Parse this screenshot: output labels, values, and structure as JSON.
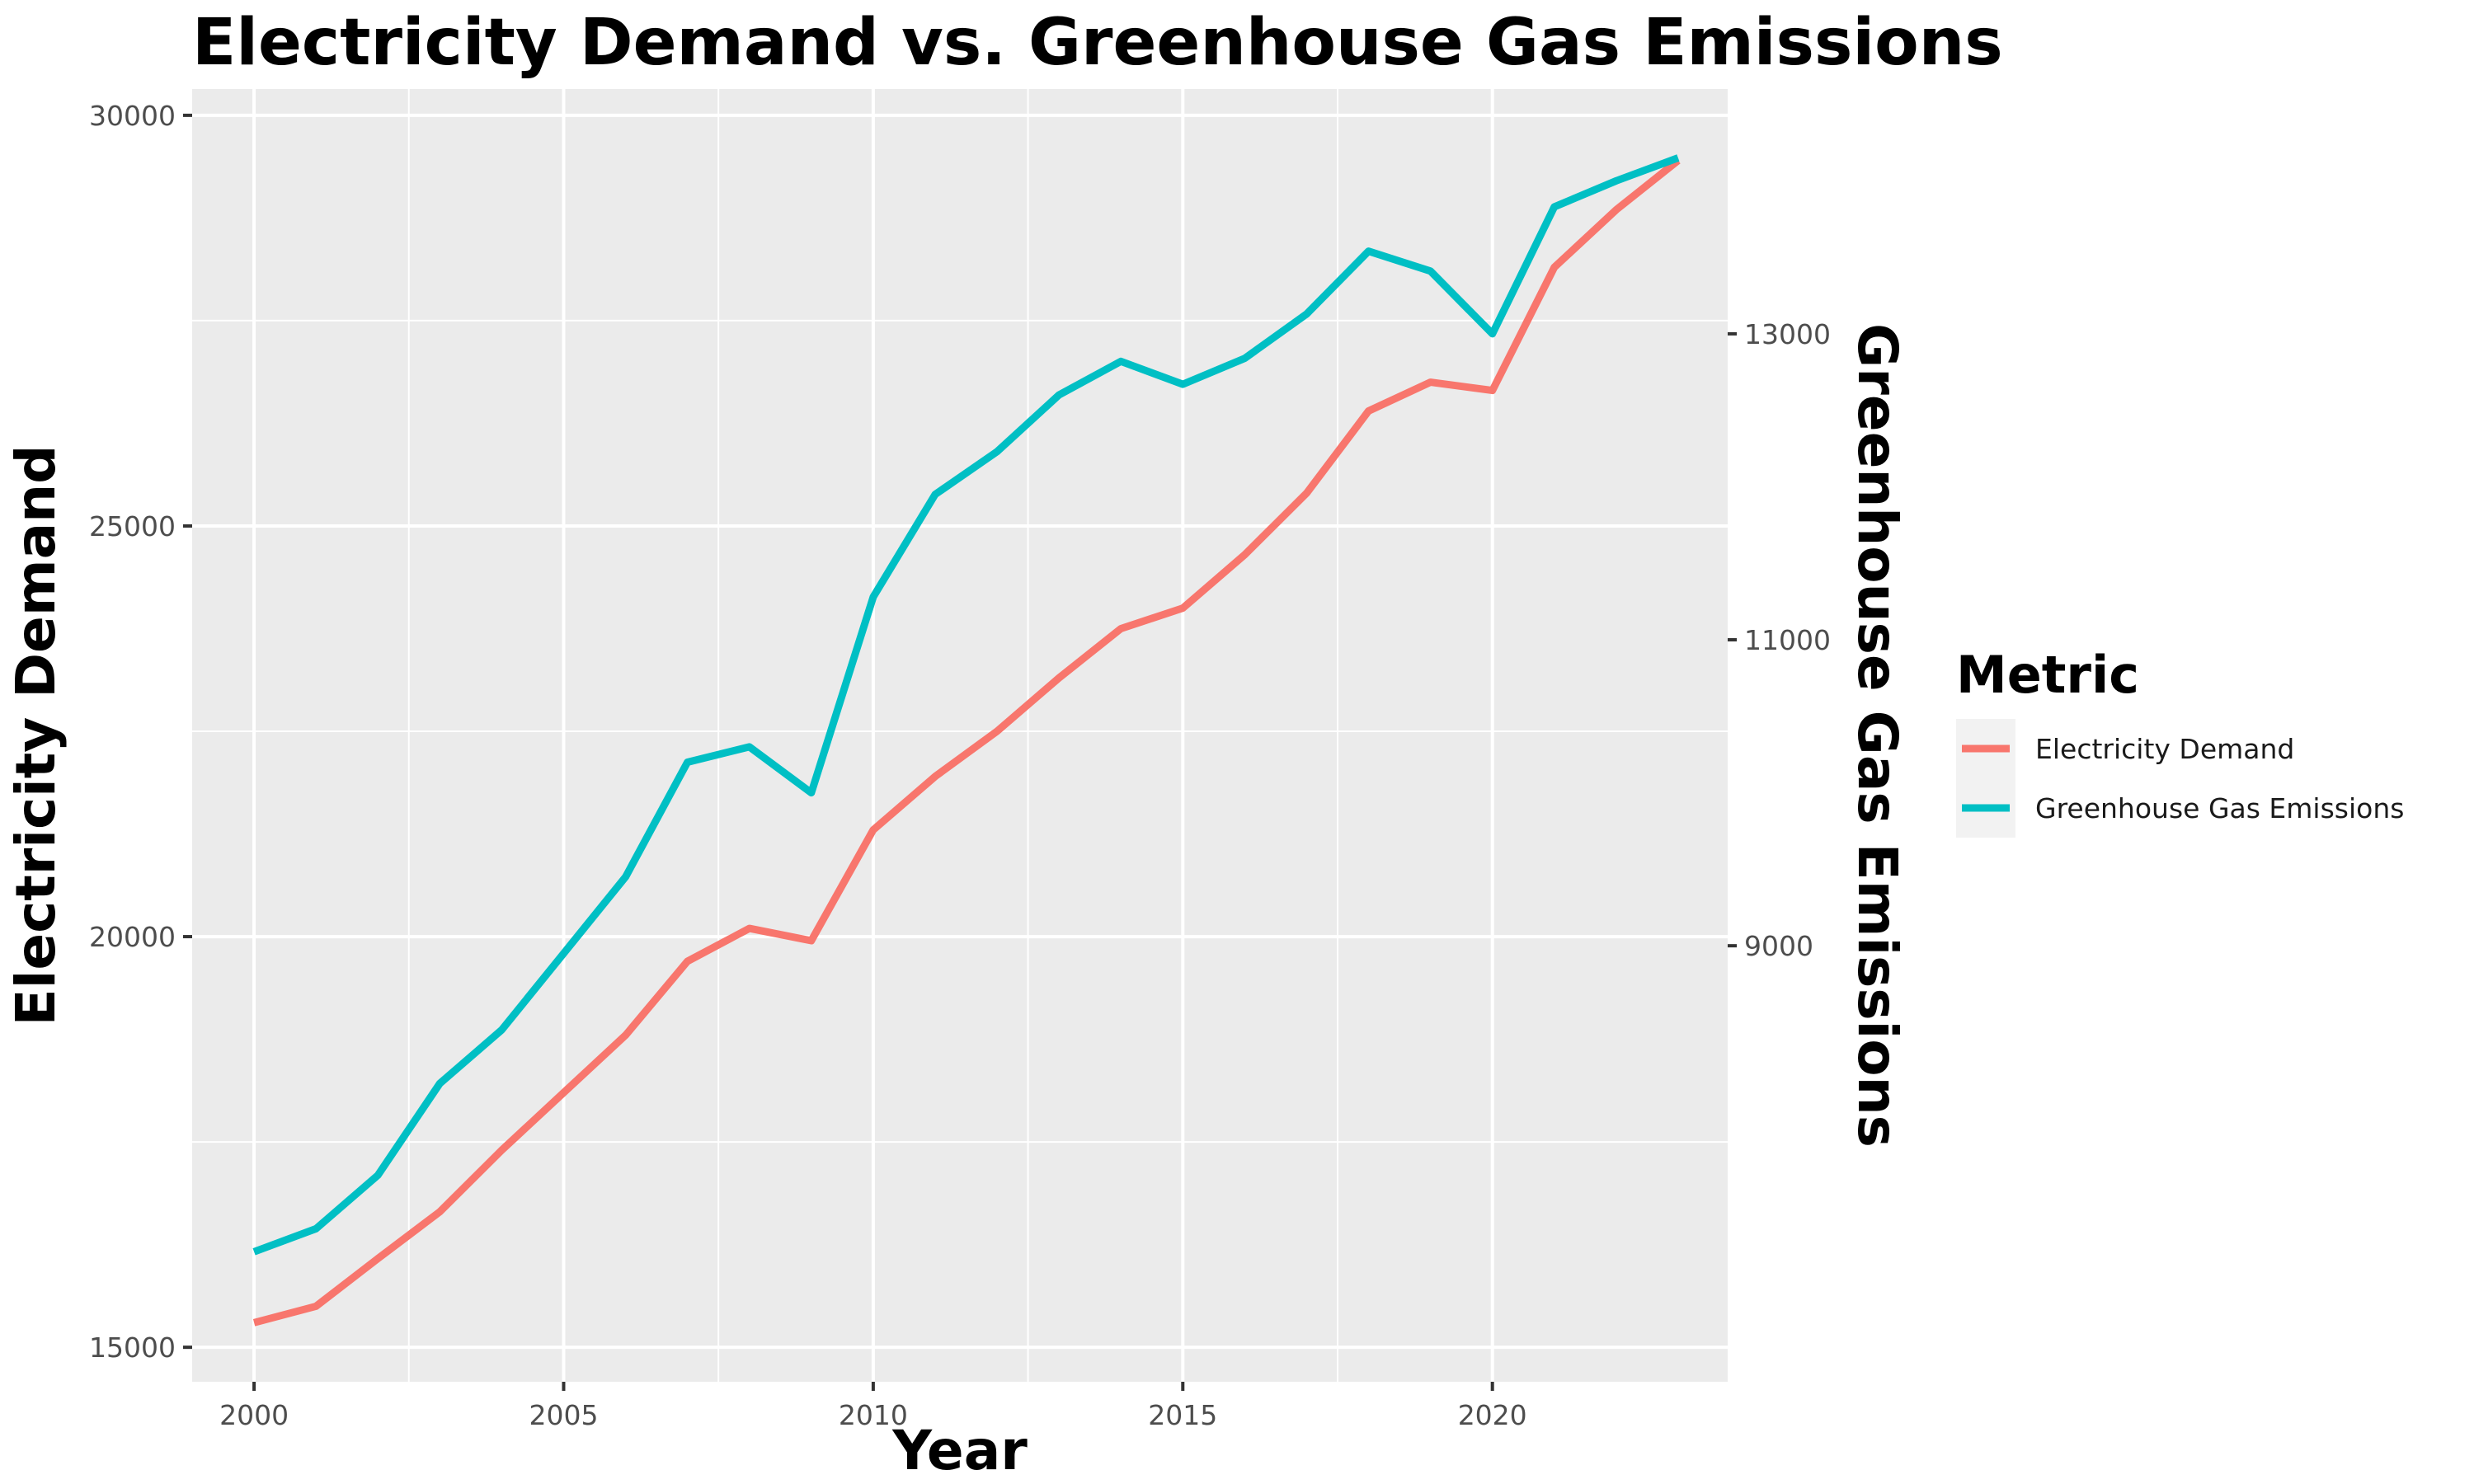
{
  "chart_data": {
    "type": "line",
    "title": "Electricity Demand vs. Greenhouse Gas Emissions",
    "xlabel": "Year",
    "ylabel": "Electricity Demand",
    "y2label": "Greenhouse Gas Emissions",
    "xlim": [
      1999.0,
      2023.8
    ],
    "ylim": [
      14580,
      30320
    ],
    "y2lim": [
      6150,
      14600
    ],
    "x_ticks": [
      2000,
      2005,
      2010,
      2015,
      2020
    ],
    "y_ticks": [
      15000,
      20000,
      25000,
      30000
    ],
    "y2_ticks": [
      9000,
      11000,
      13000
    ],
    "grid": true,
    "legend_placement": "right",
    "legend_title": "Metric",
    "x": [
      2000,
      2001,
      2002,
      2003,
      2004,
      2005,
      2006,
      2007,
      2008,
      2009,
      2010,
      2011,
      2012,
      2013,
      2014,
      2015,
      2016,
      2017,
      2018,
      2019,
      2020,
      2021,
      2022,
      2023
    ],
    "series": [
      {
        "name": "Electricity Demand",
        "axis": "left",
        "color": "#F8766D",
        "values": [
          15300,
          15500,
          16080,
          16650,
          17400,
          18100,
          18800,
          19700,
          20100,
          19950,
          21300,
          21950,
          22500,
          23150,
          23750,
          24000,
          24650,
          25400,
          26400,
          26750,
          26650,
          28150,
          28850,
          29450
        ]
      },
      {
        "name": "Greenhouse Gas Emissions",
        "axis": "right",
        "color": "#00BFC4",
        "values": [
          7000,
          7150,
          7500,
          8100,
          8450,
          8950,
          9450,
          10200,
          10300,
          10000,
          11280,
          11950,
          12230,
          12600,
          12820,
          12670,
          12840,
          13130,
          13540,
          13410,
          13000,
          13830,
          14000,
          14150
        ]
      }
    ]
  }
}
